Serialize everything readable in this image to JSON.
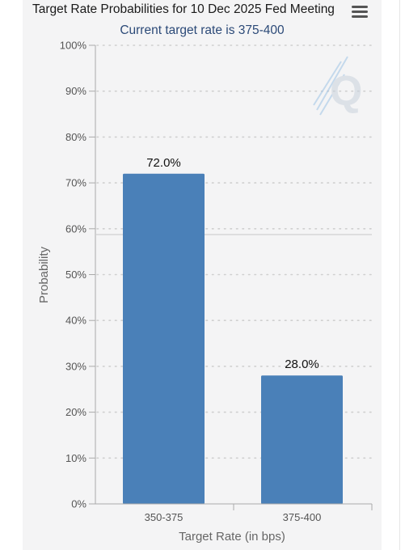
{
  "header": {
    "title": "Target Rate Probabilities for 10 Dec 2025 Fed Meeting",
    "subtitle": "Current target rate is 375-400",
    "menu_icon": "hamburger-menu-icon"
  },
  "colors": {
    "bar": "#4a80b8",
    "background": "#f4f4f5",
    "subtitle": "#2c4a78"
  },
  "chart_data": {
    "type": "bar",
    "title": "Target Rate Probabilities for 10 Dec 2025 Fed Meeting",
    "subtitle": "Current target rate is 375-400",
    "categories": [
      "350-375",
      "375-400"
    ],
    "values": [
      72.0,
      28.0
    ],
    "data_labels": [
      "72.0%",
      "28.0%"
    ],
    "xlabel": "Target Rate (in bps)",
    "ylabel": "Probability",
    "ylim": [
      0,
      100
    ],
    "yticks": [
      "0%",
      "10%",
      "20%",
      "30%",
      "40%",
      "50%",
      "60%",
      "70%",
      "80%",
      "90%",
      "100%"
    ],
    "grid": "dotted horizontal",
    "watermark_icon": "q-logo-icon"
  }
}
